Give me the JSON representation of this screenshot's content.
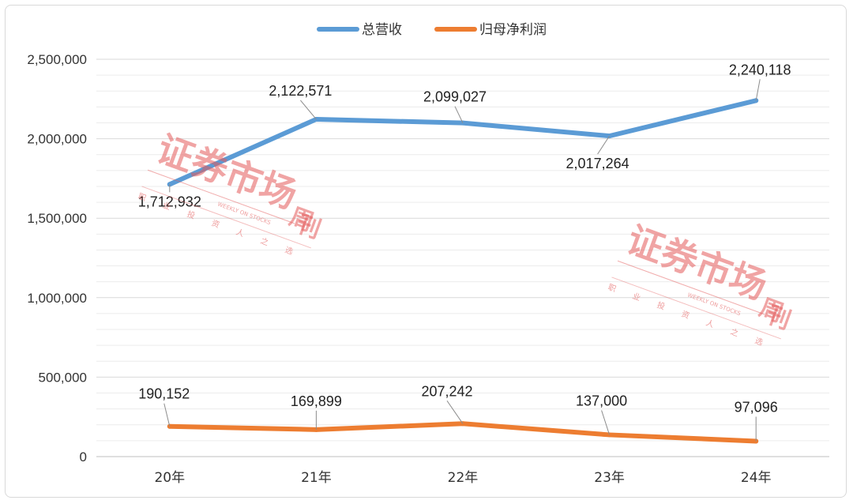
{
  "chart_data": {
    "type": "line",
    "categories": [
      "20年",
      "21年",
      "22年",
      "23年",
      "24年"
    ],
    "ylim": [
      0,
      2500000
    ],
    "yticks": [
      "0",
      "500,000",
      "1,000,000",
      "1,500,000",
      "2,000,000",
      "2,500,000"
    ],
    "grid": true,
    "legend_position": "top",
    "series": [
      {
        "name": "总营收",
        "color": "#5b9bd5",
        "values": [
          1712932,
          2122571,
          2099027,
          2017264,
          2240118
        ],
        "labels": [
          "1,712,932",
          "2,122,571",
          "2,099,027",
          "2,017,264",
          "2,240,118"
        ]
      },
      {
        "name": "归母净利润",
        "color": "#ed7d31",
        "values": [
          190152,
          169899,
          207242,
          137000,
          97096
        ],
        "labels": [
          "190,152",
          "169,899",
          "207,242",
          "137,000",
          "97,096"
        ]
      }
    ]
  },
  "watermark": {
    "main": "证券市场",
    "zhoukan": "周刊",
    "english": "WEEKLY ON STOCKS",
    "slogan": [
      "职",
      "业",
      "投",
      "资",
      "人",
      "之",
      "选"
    ]
  }
}
